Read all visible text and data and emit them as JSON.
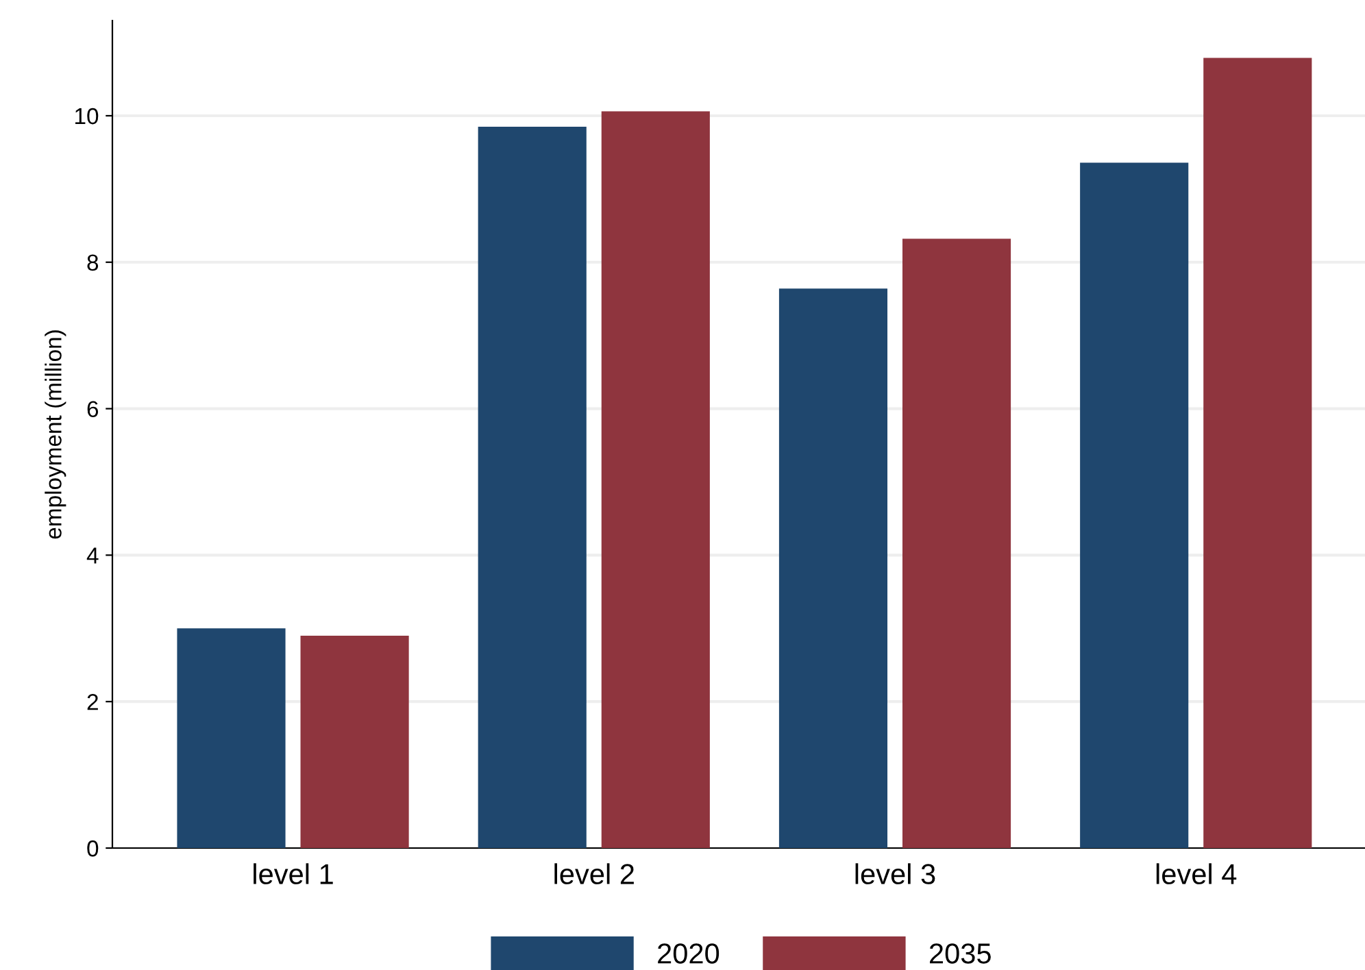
{
  "chart_data": {
    "type": "bar",
    "ylabel": "employment (million)",
    "categories": [
      "level 1",
      "level 2",
      "level 3",
      "level 4"
    ],
    "series": [
      {
        "name": "2020",
        "color": "#1f476e",
        "values": [
          3.0,
          9.85,
          7.64,
          9.36
        ]
      },
      {
        "name": "2035",
        "color": "#8f353e",
        "values": [
          2.9,
          10.06,
          8.32,
          10.79
        ]
      }
    ],
    "ylim": [
      0,
      11.3
    ],
    "yticks": [
      0,
      2,
      4,
      6,
      8,
      10
    ],
    "grid": "y",
    "legend": "bottom"
  }
}
